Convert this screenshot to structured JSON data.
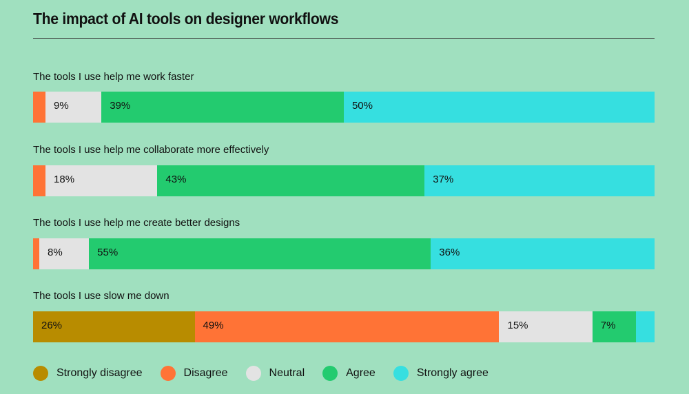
{
  "chart_data": {
    "type": "bar",
    "orientation": "horizontal-stacked-100",
    "title": "The impact of AI tools on designer workflows",
    "series_names": [
      "Strongly disagree",
      "Disagree",
      "Neutral",
      "Agree",
      "Strongly agree"
    ],
    "colors": [
      "#b88c00",
      "#ff7336",
      "#e3e3e3",
      "#23cb6f",
      "#36dfe0"
    ],
    "categories": [
      "The tools I use help me work faster",
      "The tools I use help me collaborate more effectively",
      "The tools I use help me create better designs",
      "The tools I use slow me down"
    ],
    "values": [
      [
        0,
        2,
        9,
        39,
        50
      ],
      [
        0,
        2,
        18,
        43,
        37
      ],
      [
        0,
        1,
        8,
        55,
        36
      ],
      [
        26,
        49,
        15,
        7,
        3
      ]
    ],
    "labels": [
      [
        null,
        null,
        "9%",
        "39%",
        "50%"
      ],
      [
        null,
        null,
        "18%",
        "43%",
        "37%"
      ],
      [
        null,
        null,
        "8%",
        "55%",
        "36%"
      ],
      [
        "26%",
        "49%",
        "15%",
        "7%",
        null
      ]
    ],
    "legend_position": "bottom-left"
  }
}
